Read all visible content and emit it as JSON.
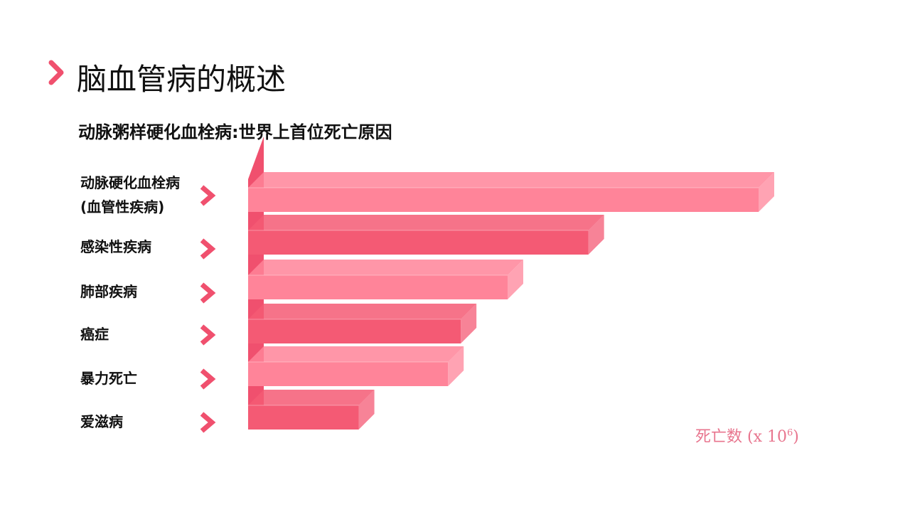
{
  "title": "脑血管病的概述",
  "colors": {
    "accent": "#f0506e",
    "bar_dark": "#f45a74",
    "bar_light": "#ff8499",
    "unit_text": "#e8758e"
  },
  "icons": {
    "title_marker": "chevron-right-icon",
    "row_marker": "chevron-right-icon"
  },
  "chart_data": {
    "type": "bar",
    "orientation": "horizontal",
    "title": "动脉粥样硬化血栓病:世界上首位死亡原因",
    "categories": [
      [
        "动脉硬化血栓病",
        "(血管性疾病)"
      ],
      [
        "感染性疾病"
      ],
      [
        "肺部疾病"
      ],
      [
        "癌症"
      ],
      [
        "暴力死亡"
      ],
      [
        "爱滋病"
      ]
    ],
    "values": [
      12.0,
      8.0,
      6.1,
      5.0,
      4.7,
      2.6
    ],
    "unit_label": {
      "text": "死亡数 (x 10",
      "exponent": "6",
      "close": ")"
    },
    "axis_labels_visible": false,
    "grid": false,
    "legend": "none",
    "style": "3d-extruded"
  }
}
